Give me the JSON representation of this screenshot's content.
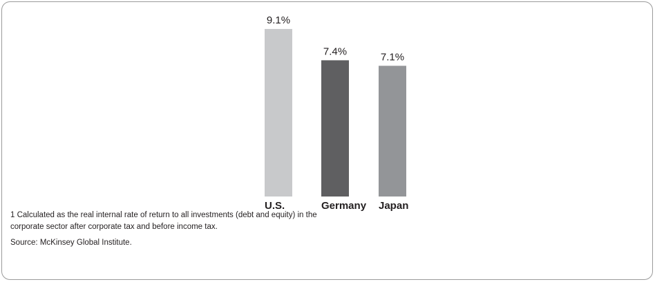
{
  "chart_data": {
    "type": "bar",
    "categories": [
      "U.S.",
      "Germany",
      "Japan"
    ],
    "values": [
      9.1,
      7.4,
      7.1
    ],
    "value_labels": [
      "9.1%",
      "7.4%",
      "7.1%"
    ],
    "colors": [
      "#c8c9cb",
      "#5f5f61",
      "#939598"
    ],
    "footnote": [
      "1  Calculated as the real internal rate of return to all investments (debt and equity) in the",
      "corporate sector after corporate tax and before income tax."
    ],
    "source": "Source: McKinsey Global Institute."
  }
}
